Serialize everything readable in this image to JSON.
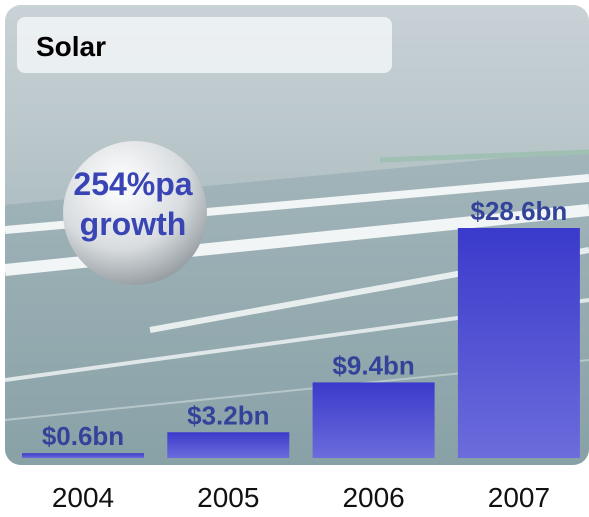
{
  "chart_data": {
    "type": "bar",
    "title": "Solar",
    "annotation": [
      "254%pa",
      "growth"
    ],
    "categories": [
      "2004",
      "2005",
      "2006",
      "2007"
    ],
    "values": [
      0.6,
      3.2,
      9.4,
      28.6
    ],
    "value_labels": [
      "$0.6bn",
      "$3.2bn",
      "$9.4bn",
      "$28.6bn"
    ],
    "color": "#4646d2"
  }
}
